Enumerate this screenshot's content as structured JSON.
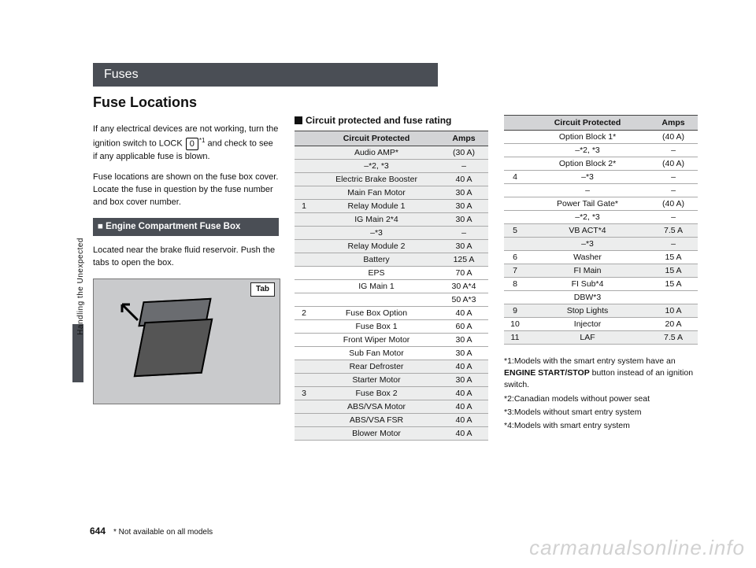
{
  "section": "Fuses",
  "title": "Fuse Locations",
  "sidebar_text": "Handling the Unexpected",
  "page_number": "644",
  "bottom_note": "* Not available on all models",
  "watermark": "carmanualsonline.info",
  "intro": {
    "p1a": "If any electrical devices are not working, turn the ignition switch to LOCK ",
    "lock_key": "0",
    "lock_sup": "*1",
    "p1b": " and check to see if any applicable fuse is blown.",
    "p2": "Fuse locations are shown on the fuse box cover. Locate the fuse in question by the fuse number and box cover number.",
    "box_label": "Engine Compartment Fuse Box",
    "p3": "Located near the brake fluid reservoir. Push the tabs to open the box.",
    "img_tab": "Tab"
  },
  "table_heading": "Circuit protected and fuse rating",
  "col_labels": {
    "a": "Circuit Protected",
    "b": "Amps"
  },
  "groups_left": [
    {
      "n": "1",
      "rows": [
        {
          "c": "Audio AMP*",
          "a": "(30 A)",
          "sh": true
        },
        {
          "c": "–*2, *3",
          "a": "–",
          "sh": true
        },
        {
          "c": "Electric Brake Booster",
          "a": "40 A",
          "sh": true
        },
        {
          "c": "Main Fan Motor",
          "a": "30 A",
          "sh": true
        },
        {
          "c": "Relay Module 1",
          "a": "30 A",
          "sh": true
        },
        {
          "c": "IG Main 2*4",
          "a": "30 A",
          "sh": true
        },
        {
          "c": "–*3",
          "a": "–",
          "sh": true
        },
        {
          "c": "Relay Module 2",
          "a": "30 A",
          "sh": true
        },
        {
          "c": "Battery",
          "a": "125 A",
          "sh": true
        }
      ]
    },
    {
      "n": "2",
      "rows": [
        {
          "c": "EPS",
          "a": "70 A"
        },
        {
          "c": "IG Main 1",
          "a": "30 A*4"
        },
        {
          "c": "",
          "a": "50 A*3"
        },
        {
          "c": "Fuse Box Option",
          "a": "40 A"
        },
        {
          "c": "Fuse Box 1",
          "a": "60 A"
        },
        {
          "c": "Front Wiper Motor",
          "a": "30 A"
        },
        {
          "c": "Sub Fan Motor",
          "a": "30 A"
        }
      ]
    },
    {
      "n": "3",
      "rows": [
        {
          "c": "Rear Defroster",
          "a": "40 A",
          "sh": true
        },
        {
          "c": "Starter Motor",
          "a": "30 A",
          "sh": true
        },
        {
          "c": "Fuse Box 2",
          "a": "40 A",
          "sh": true
        },
        {
          "c": "ABS/VSA Motor",
          "a": "40 A",
          "sh": true
        },
        {
          "c": "ABS/VSA FSR",
          "a": "40 A",
          "sh": true
        },
        {
          "c": "Blower Motor",
          "a": "40 A",
          "sh": true
        }
      ]
    }
  ],
  "groups_right": [
    {
      "n": "4",
      "rows": [
        {
          "c": "Option Block 1*",
          "a": "(40 A)"
        },
        {
          "c": "–*2, *3",
          "a": "–"
        },
        {
          "c": "Option Block 2*",
          "a": "(40 A)"
        },
        {
          "c": "–*3",
          "a": "–"
        },
        {
          "c": "–",
          "a": "–"
        },
        {
          "c": "Power Tail Gate*",
          "a": "(40 A)"
        },
        {
          "c": "–*2, *3",
          "a": "–"
        }
      ]
    },
    {
      "n": "5",
      "rows": [
        {
          "c": "VB ACT*4",
          "a": "7.5 A",
          "sh": true
        },
        {
          "c": "–*3",
          "a": "–",
          "sh": true
        }
      ]
    },
    {
      "n": "6",
      "rows": [
        {
          "c": "Washer",
          "a": "15 A"
        }
      ]
    },
    {
      "n": "7",
      "rows": [
        {
          "c": "FI Main",
          "a": "15 A",
          "sh": true
        }
      ]
    },
    {
      "n": "8",
      "rows": [
        {
          "c": "FI Sub*4",
          "a": "15 A"
        },
        {
          "c": "DBW*3",
          "a": ""
        }
      ]
    },
    {
      "n": "9",
      "rows": [
        {
          "c": "Stop Lights",
          "a": "10 A",
          "sh": true
        }
      ]
    },
    {
      "n": "10",
      "rows": [
        {
          "c": "Injector",
          "a": "20 A"
        }
      ]
    },
    {
      "n": "11",
      "rows": [
        {
          "c": "LAF",
          "a": "7.5 A",
          "sh": true
        }
      ]
    }
  ],
  "footnotes": [
    "*1:Models with the smart entry system have an ENGINE START/STOP button instead of an ignition switch.",
    "*2:Canadian models without power seat",
    "*3:Models without smart entry system",
    "*4:Models with smart entry system"
  ]
}
